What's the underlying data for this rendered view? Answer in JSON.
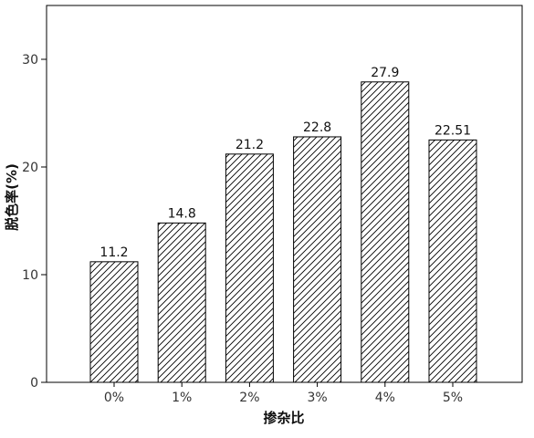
{
  "chart_data": {
    "type": "bar",
    "title": "",
    "xlabel": "掺杂比",
    "ylabel": "脱色率(%)",
    "categories": [
      "0%",
      "1%",
      "2%",
      "3%",
      "4%",
      "5%"
    ],
    "values": [
      11.2,
      14.8,
      21.2,
      22.8,
      27.9,
      22.51
    ],
    "data_labels": [
      "11.2",
      "14.8",
      "21.2",
      "22.8",
      "27.9",
      "22.51"
    ],
    "ylim": [
      0,
      35
    ],
    "yticks": [
      0,
      10,
      20,
      30
    ],
    "grid": false,
    "bar_fill": "diagonal-hatch",
    "colors": {
      "bar_edge": "#000000",
      "hatch": "#000000",
      "background": "#ffffff"
    }
  }
}
